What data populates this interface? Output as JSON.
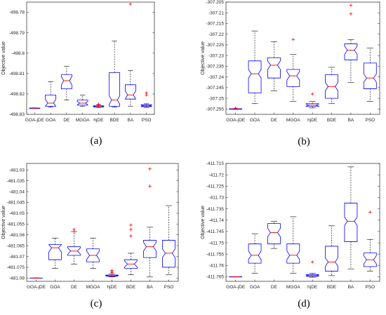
{
  "figure": {
    "categories": [
      "GOA-jDE",
      "GOA",
      "DE",
      "MGOA",
      "hjDE",
      "BDE",
      "BA",
      "PSO"
    ],
    "colors": {
      "box": "#0000ff",
      "median": "#ff0000",
      "whisker": "#000000",
      "outlier": "#ff0000",
      "axis": "#262626"
    }
  },
  "chart_data": [
    {
      "type": "box",
      "panel_label": "(a)",
      "ylabel": "Objective value",
      "ylim": [
        -498.83,
        -498.775
      ],
      "reversed": true,
      "yticks": [
        -498.83,
        -498.82,
        -498.81,
        -498.8,
        -498.79,
        -498.78
      ],
      "ytick_labels": [
        "-498.83",
        "-498.82",
        "-498.81",
        "-498.8",
        "-498.79",
        "-498.78"
      ],
      "boxes": [
        {
          "category": "GOA-jDE",
          "whisker_low": -498.8272,
          "q1": -498.8271,
          "median": -498.827,
          "q3": -498.8269,
          "whisker_high": -498.8268,
          "outliers": []
        },
        {
          "category": "GOA",
          "whisker_low": -498.8265,
          "q1": -498.826,
          "median": -498.8245,
          "q3": -498.8205,
          "whisker_high": -498.814,
          "outliers": []
        },
        {
          "category": "DE",
          "whisker_low": -498.823,
          "q1": -498.8175,
          "median": -498.8135,
          "q3": -498.8105,
          "whisker_high": -498.8065,
          "outliers": []
        },
        {
          "category": "MGOA",
          "whisker_low": -498.826,
          "q1": -498.8255,
          "median": -498.8245,
          "q3": -498.823,
          "whisker_high": -498.8205,
          "outliers": []
        },
        {
          "category": "hjDE",
          "whisker_low": -498.8266,
          "q1": -498.8264,
          "median": -498.8262,
          "q3": -498.8258,
          "whisker_high": -498.8254,
          "outliers": [
            -498.8255,
            -498.825
          ]
        },
        {
          "category": "BDE",
          "whisker_low": -498.8265,
          "q1": -498.826,
          "median": -498.823,
          "q3": -498.8095,
          "whisker_high": -498.794,
          "outliers": []
        },
        {
          "category": "BA",
          "whisker_low": -498.826,
          "q1": -498.8225,
          "median": -498.8205,
          "q3": -498.8155,
          "whisker_high": -498.8085,
          "outliers": [
            -498.776
          ]
        },
        {
          "category": "PSO",
          "whisker_low": -498.8266,
          "q1": -498.8262,
          "median": -498.8258,
          "q3": -498.8253,
          "whisker_high": -498.8248,
          "outliers": [
            -498.8205,
            -498.8195
          ]
        }
      ]
    },
    {
      "type": "box",
      "panel_label": "(b)",
      "ylabel": "Objective value",
      "ylim": [
        -307.2575,
        -307.205
      ],
      "reversed": true,
      "yticks": [
        -307.255,
        -307.25,
        -307.245,
        -307.24,
        -307.235,
        -307.23,
        -307.225,
        -307.22,
        -307.215,
        -307.21,
        -307.205
      ],
      "ytick_labels": [
        "-307.255",
        "-307.25",
        "-307.245",
        "-307.24",
        "-307.235",
        "-307.23",
        "-307.225",
        "-307.22",
        "-307.215",
        "-307.21",
        "-307.205"
      ],
      "boxes": [
        {
          "category": "GOA-jDE",
          "whisker_low": -307.2552,
          "q1": -307.2551,
          "median": -307.255,
          "q3": -307.2549,
          "whisker_high": -307.2548,
          "outliers": [
            -307.2546
          ]
        },
        {
          "category": "GOA",
          "whisker_low": -307.2525,
          "q1": -307.2475,
          "median": -307.2385,
          "q3": -307.2325,
          "whisker_high": -307.2185,
          "outliers": []
        },
        {
          "category": "DE",
          "whisker_low": -307.2465,
          "q1": -307.2405,
          "median": -307.2345,
          "q3": -307.231,
          "whisker_high": -307.2235,
          "outliers": []
        },
        {
          "category": "MGOA",
          "whisker_low": -307.2515,
          "q1": -307.2445,
          "median": -307.2395,
          "q3": -307.2365,
          "whisker_high": -307.2295,
          "outliers": [
            -307.2225
          ]
        },
        {
          "category": "hjDE",
          "whisker_low": -307.2545,
          "q1": -307.2538,
          "median": -307.2532,
          "q3": -307.2525,
          "whisker_high": -307.2515,
          "outliers": [
            -307.248
          ]
        },
        {
          "category": "BDE",
          "whisker_low": -307.2525,
          "q1": -307.25,
          "median": -307.2445,
          "q3": -307.239,
          "whisker_high": -307.2355,
          "outliers": []
        },
        {
          "category": "BA",
          "whisker_low": -307.2425,
          "q1": -307.232,
          "median": -307.2275,
          "q3": -307.2245,
          "whisker_high": -307.2225,
          "outliers": [
            -307.2105,
            -307.2065
          ]
        },
        {
          "category": "PSO",
          "whisker_low": -307.2515,
          "q1": -307.2455,
          "median": -307.2405,
          "q3": -307.2335,
          "whisker_high": -307.2265,
          "outliers": []
        }
      ]
    },
    {
      "type": "box",
      "panel_label": "(c)",
      "ylabel": "Objective value",
      "ylim": [
        -481.0815,
        -481.027
      ],
      "reversed": true,
      "yticks": [
        -481.08,
        -481.075,
        -481.07,
        -481.065,
        -481.06,
        -481.055,
        -481.05,
        -481.045,
        -481.04,
        -481.035,
        -481.03
      ],
      "ytick_labels": [
        "-481.08",
        "-481.075",
        "-481.07",
        "-481.065",
        "-481.06",
        "-481.055",
        "-481.05",
        "-481.045",
        "-481.04",
        "-481.035",
        "-481.03"
      ],
      "boxes": [
        {
          "category": "GOA-jDE",
          "whisker_low": -481.0801,
          "q1": -481.08005,
          "median": -481.08,
          "q3": -481.07995,
          "whisker_high": -481.0799,
          "outliers": []
        },
        {
          "category": "GOA",
          "whisker_low": -481.0755,
          "q1": -481.0715,
          "median": -481.066,
          "q3": -481.0645,
          "whisker_high": -481.0615,
          "outliers": []
        },
        {
          "category": "DE",
          "whisker_low": -481.0735,
          "q1": -481.0695,
          "median": -481.0675,
          "q3": -481.0655,
          "whisker_high": -481.0585,
          "outliers": [
            -481.0575,
            -481.0585
          ]
        },
        {
          "category": "MGOA",
          "whisker_low": -481.0755,
          "q1": -481.0725,
          "median": -481.0695,
          "q3": -481.0665,
          "whisker_high": -481.0615,
          "outliers": []
        },
        {
          "category": "hjDE",
          "whisker_low": -481.0795,
          "q1": -481.0792,
          "median": -481.079,
          "q3": -481.0786,
          "whisker_high": -481.078,
          "outliers": [
            -481.0775,
            -481.077,
            -481.0765
          ]
        },
        {
          "category": "BDE",
          "whisker_low": -481.0785,
          "q1": -481.0755,
          "median": -481.0735,
          "q3": -481.0715,
          "whisker_high": -481.0685,
          "outliers": [
            -481.0555,
            -481.0575,
            -481.0605
          ]
        },
        {
          "category": "BA",
          "whisker_low": -481.0795,
          "q1": -481.0705,
          "median": -481.0655,
          "q3": -481.0625,
          "whisker_high": -481.0565,
          "outliers": [
            -481.0295,
            -481.0375
          ]
        },
        {
          "category": "PSO",
          "whisker_low": -481.0785,
          "q1": -481.075,
          "median": -481.0685,
          "q3": -481.0625,
          "whisker_high": -481.0465,
          "outliers": []
        }
      ]
    },
    {
      "type": "box",
      "panel_label": "(d)",
      "ylabel": "Objective value",
      "ylim": [
        -411.767,
        -411.715
      ],
      "reversed": true,
      "yticks": [
        -411.765,
        -411.76,
        -411.755,
        -411.75,
        -411.745,
        -411.74,
        -411.735,
        -411.73,
        -411.725,
        -411.72,
        -411.715
      ],
      "ytick_labels": [
        "-411.765",
        "-411.76",
        "-411.755",
        "-411.75",
        "-411.745",
        "-411.74",
        "-411.735",
        "-411.73",
        "-411.725",
        "-411.72",
        "-411.715"
      ],
      "boxes": [
        {
          "category": "GOA-jDE",
          "whisker_low": -411.7651,
          "q1": -411.76505,
          "median": -411.765,
          "q3": -411.76495,
          "whisker_high": -411.7649,
          "outliers": []
        },
        {
          "category": "GOA",
          "whisker_low": -411.7635,
          "q1": -411.759,
          "median": -411.7555,
          "q3": -411.7505,
          "whisker_high": -411.746,
          "outliers": []
        },
        {
          "category": "DE",
          "whisker_low": -411.7525,
          "q1": -411.7505,
          "median": -411.7455,
          "q3": -411.7415,
          "whisker_high": -411.7405,
          "outliers": []
        },
        {
          "category": "MGOA",
          "whisker_low": -411.7635,
          "q1": -411.759,
          "median": -411.7555,
          "q3": -411.7505,
          "whisker_high": -411.7385,
          "outliers": []
        },
        {
          "category": "hjDE",
          "whisker_low": -411.7652,
          "q1": -411.7648,
          "median": -411.7645,
          "q3": -411.764,
          "whisker_high": -411.7635,
          "outliers": [
            -411.7585
          ]
        },
        {
          "category": "BDE",
          "whisker_low": -411.7645,
          "q1": -411.7625,
          "median": -411.7585,
          "q3": -411.7515,
          "whisker_high": -411.7425,
          "outliers": []
        },
        {
          "category": "BA",
          "whisker_low": -411.7615,
          "q1": -411.7495,
          "median": -411.7405,
          "q3": -411.7325,
          "whisker_high": -411.7165,
          "outliers": []
        },
        {
          "category": "PSO",
          "whisker_low": -411.7625,
          "q1": -411.7605,
          "median": -411.7575,
          "q3": -411.7545,
          "whisker_high": -411.7485,
          "outliers": [
            -411.7365
          ]
        }
      ]
    }
  ]
}
